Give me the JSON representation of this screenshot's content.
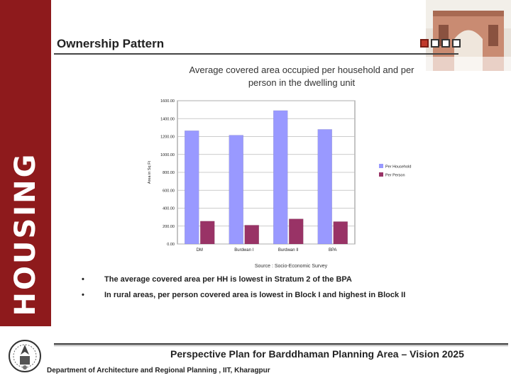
{
  "sidebar": {
    "vertical_title": "HOUSING",
    "color": "#8e1a1c"
  },
  "header": {
    "title": "Ownership Pattern"
  },
  "icons": {
    "photo": "building-photo-icon",
    "logo": "iit-logo-icon"
  },
  "chart_title_line1": "Average covered area occupied per household and per",
  "chart_title_line2": "person in the dwelling unit",
  "chart_data": {
    "type": "bar",
    "categories": [
      "DM",
      "Burdwan I",
      "Burdwan II",
      "BPA"
    ],
    "series": [
      {
        "name": "Per Household",
        "values": [
          1265,
          1215,
          1490,
          1280
        ],
        "color": "#9999ff"
      },
      {
        "name": "Per Person",
        "values": [
          255,
          210,
          280,
          250
        ],
        "color": "#993366"
      }
    ],
    "ylabel": "Area in Sq Ft",
    "ylim": [
      0,
      1600
    ],
    "yticks": [
      "0.00",
      "200.00",
      "400.00",
      "600.00",
      "800.00",
      "1000.00",
      "1200.00",
      "1400.00",
      "1600.00"
    ],
    "legend": "right",
    "grid": true
  },
  "source": "Source : Socio-Economic Survey",
  "bullets": [
    "The average covered area per HH is lowest in Stratum 2 of the BPA",
    "In rural areas, per person covered area is lowest in Block I and highest in Block II"
  ],
  "footer": {
    "main": "Perspective Plan for Barddhaman Planning Area – Vision 2025",
    "dept": "Department of Architecture and Regional Planning , IIT, Kharagpur"
  }
}
